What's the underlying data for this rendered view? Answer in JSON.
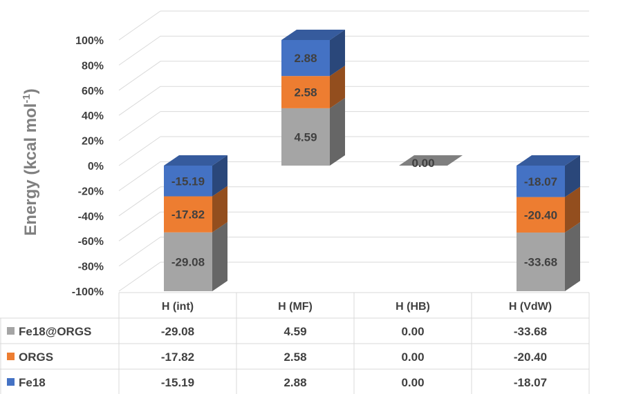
{
  "chart_data": {
    "type": "bar",
    "stacked": true,
    "three_d": true,
    "ylabel": "Energy (kcal mol",
    "ylabel_sup": "-1",
    "ylabel_close": ")",
    "y_ticks": [
      "100%",
      "80%",
      "60%",
      "40%",
      "20%",
      "0%",
      "-20%",
      "-40%",
      "-60%",
      "-80%",
      "-100%"
    ],
    "ylim": [
      -100,
      100
    ],
    "categories": [
      "H (int)",
      "H  (MF)",
      "H (HB)",
      "H (VdW)"
    ],
    "series": [
      {
        "name": "Fe18@ORGS",
        "color": "#a5a5a5",
        "values": [
          -29.08,
          4.59,
          0.0,
          -33.68
        ],
        "labels": [
          "-29.08",
          "4.59",
          "0.00",
          "-33.68"
        ]
      },
      {
        "name": "ORGS",
        "color": "#ed7d31",
        "values": [
          -17.82,
          2.58,
          0.0,
          -20.4
        ],
        "labels": [
          "-17.82",
          "2.58",
          "0.00",
          "-20.40"
        ]
      },
      {
        "name": "Fe18",
        "color": "#4472c4",
        "values": [
          -15.19,
          2.88,
          0.0,
          -18.07
        ],
        "labels": [
          "-15.19",
          "2.88",
          "0.00",
          "-18.07"
        ]
      }
    ],
    "grid": true,
    "data_table": true,
    "legend_placement": "in data table"
  }
}
